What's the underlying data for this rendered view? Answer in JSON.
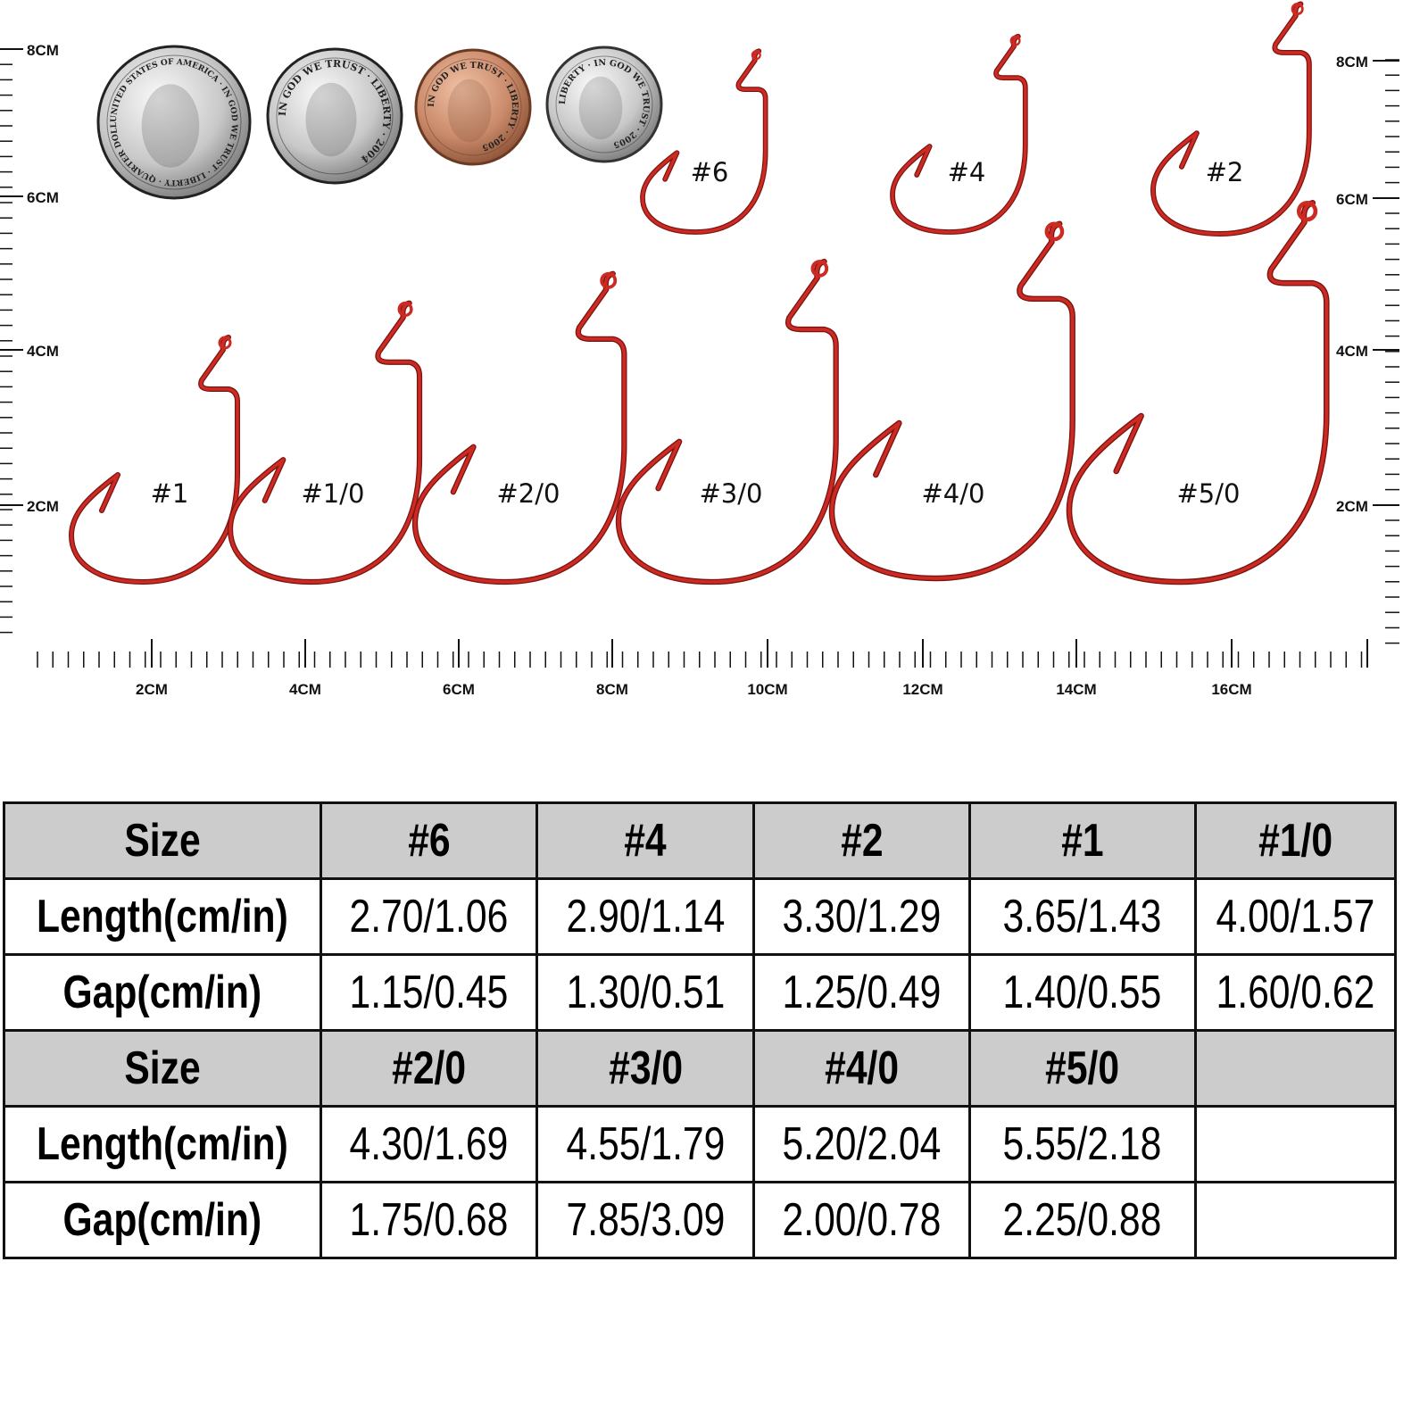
{
  "coins": [
    {
      "name": "quarter",
      "lettering": "UNITED STATES OF AMERICA · IN GOD WE TRUST · LIBERTY · QUARTER DOLLAR"
    },
    {
      "name": "nickel",
      "lettering": "IN GOD WE TRUST · LIBERTY · 2004"
    },
    {
      "name": "penny",
      "lettering": "IN GOD WE TRUST · LIBERTY · 2005"
    },
    {
      "name": "dime",
      "lettering": "LIBERTY · IN GOD WE TRUST · 2005"
    }
  ],
  "hook_color": "#cc2a22",
  "hooks": [
    "#6",
    "#4",
    "#2",
    "#1",
    "#1/0",
    "#2/0",
    "#3/0",
    "#4/0",
    "#5/0"
  ],
  "ruler": {
    "left": [
      "8CM",
      "6CM",
      "4CM",
      "2CM"
    ],
    "right": [
      "8CM",
      "6CM",
      "4CM",
      "2CM"
    ],
    "bottom": [
      "2CM",
      "4CM",
      "6CM",
      "8CM",
      "10CM",
      "12CM",
      "14CM",
      "16CM"
    ]
  },
  "table": {
    "rows": [
      {
        "type": "head",
        "cells": [
          "Size",
          "#6",
          "#4",
          "#2",
          "#1",
          "#1/0"
        ]
      },
      {
        "type": "body",
        "cells": [
          "Length(cm/in)",
          "2.70/1.06",
          "2.90/1.14",
          "3.30/1.29",
          "3.65/1.43",
          "4.00/1.57"
        ]
      },
      {
        "type": "body",
        "cells": [
          "Gap(cm/in)",
          "1.15/0.45",
          "1.30/0.51",
          "1.25/0.49",
          "1.40/0.55",
          "1.60/0.62"
        ]
      },
      {
        "type": "head",
        "cells": [
          "Size",
          "#2/0",
          "#3/0",
          "#4/0",
          "#5/0",
          ""
        ]
      },
      {
        "type": "body",
        "cells": [
          "Length(cm/in)",
          "4.30/1.69",
          "4.55/1.79",
          "5.20/2.04",
          "5.55/2.18",
          ""
        ]
      },
      {
        "type": "body",
        "cells": [
          "Gap(cm/in)",
          "1.75/0.68",
          "7.85/3.09",
          "2.00/0.78",
          "2.25/0.88",
          ""
        ]
      }
    ]
  }
}
